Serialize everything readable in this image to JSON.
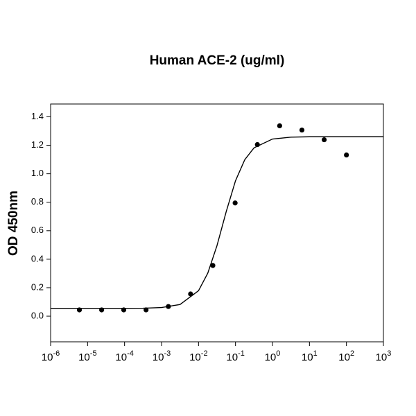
{
  "chart_data": {
    "type": "scatter",
    "title": "Human ACE-2 (ug/ml)",
    "y_label": "OD 450nm",
    "x_scale": "log",
    "xlim": [
      1e-06,
      1000
    ],
    "xticks": [
      {
        "value": 1e-06,
        "label": "10-6"
      },
      {
        "value": 1e-05,
        "label": "10-5"
      },
      {
        "value": 0.0001,
        "label": "10-4"
      },
      {
        "value": 0.001,
        "label": "10-3"
      },
      {
        "value": 0.01,
        "label": "10-2"
      },
      {
        "value": 0.1,
        "label": "10-1"
      },
      {
        "value": 1,
        "label": "100"
      },
      {
        "value": 10,
        "label": "101"
      },
      {
        "value": 100,
        "label": "102"
      },
      {
        "value": 1000,
        "label": "103"
      }
    ],
    "ylim": [
      -0.18,
      1.49
    ],
    "yticks": [
      {
        "value": 0,
        "label": "0.0"
      },
      0.2,
      0.4,
      0.6,
      0.8,
      {
        "value": 1,
        "label": "1.0"
      },
      1.2,
      1.4
    ],
    "series": [
      {
        "style": "markers",
        "color": "#000000",
        "x": [
          6e-06,
          2.4e-05,
          9.5e-05,
          0.000381,
          0.00153,
          0.0061,
          0.0244,
          0.0977,
          0.390625,
          1.5625,
          6.25,
          25,
          100
        ],
        "values": [
          0.044,
          0.044,
          0.044,
          0.044,
          0.068,
          0.156,
          0.356,
          0.795,
          1.205,
          1.337,
          1.307,
          1.239,
          1.132
        ]
      },
      {
        "style": "line",
        "color": "#000000",
        "x": [
          1e-06,
          1e-05,
          0.0001,
          0.000316,
          0.001,
          0.00316,
          0.01,
          0.0178,
          0.0316,
          0.0562,
          0.1,
          0.178,
          0.316,
          1,
          3.16,
          10,
          100,
          1000
        ],
        "values": [
          0.055,
          0.055,
          0.055,
          0.056,
          0.0605,
          0.082,
          0.179,
          0.302,
          0.496,
          0.735,
          0.951,
          1.099,
          1.182,
          1.244,
          1.257,
          1.26,
          1.26,
          1.26
        ]
      }
    ]
  }
}
